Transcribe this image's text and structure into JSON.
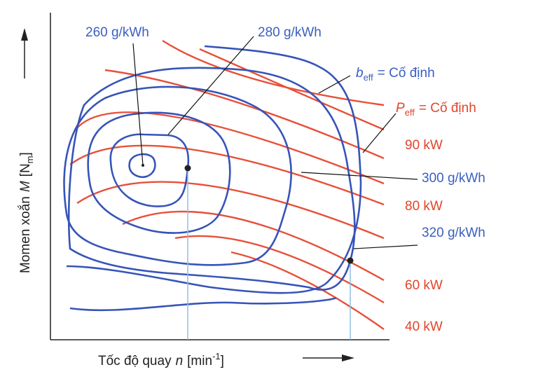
{
  "y_axis": {
    "name": "Momen xoắn",
    "symbol": "M",
    "unit_open": "[N",
    "unit_sub": "m",
    "unit_close": "]"
  },
  "x_axis": {
    "name": "Tốc độ quay",
    "symbol": "n",
    "unit_open": "[min",
    "unit_sup": "-1",
    "unit_close": "]"
  },
  "consumption_labels": [
    "260 g/kWh",
    "280 g/kWh",
    "300 g/kWh",
    "320 g/kWh"
  ],
  "b_legend": {
    "symbol": "b",
    "sub": "eff",
    "text": "= Cố định"
  },
  "p_legend": {
    "symbol": "P",
    "sub": "eff",
    "text": "= Cố định"
  },
  "power_labels": [
    "90 kW",
    "80 kW",
    "60 kW",
    "40 kW"
  ]
}
